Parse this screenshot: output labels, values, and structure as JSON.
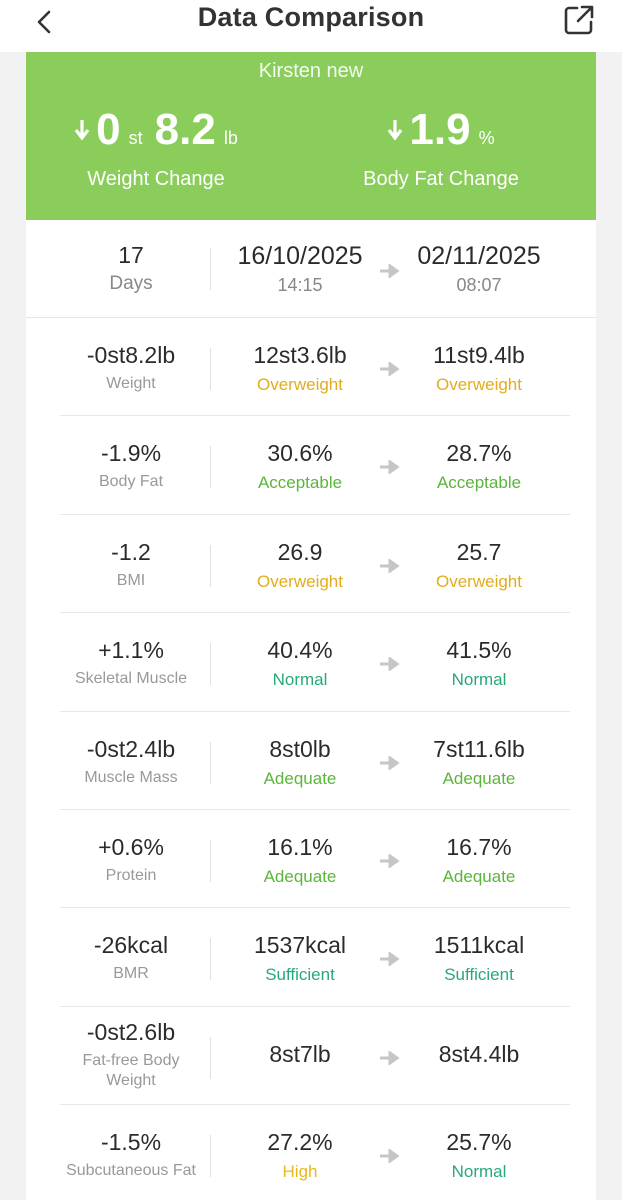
{
  "header": {
    "title": "Data Comparison",
    "back_icon": "chevron-left-icon",
    "share_icon": "share-external-icon"
  },
  "summary": {
    "user": "Kirsten new",
    "weight_change": {
      "arrow": "down",
      "st": "0",
      "st_unit": "st",
      "lb": "8.2",
      "lb_unit": "lb",
      "label": "Weight Change"
    },
    "body_fat_change": {
      "arrow": "down",
      "value": "1.9",
      "unit": "%",
      "label": "Body Fat Change"
    },
    "accent_color": "#8acd5a"
  },
  "period": {
    "days": "17",
    "days_label": "Days",
    "from_date": "16/10/2025",
    "from_time": "14:15",
    "to_date": "02/11/2025",
    "to_time": "08:07"
  },
  "status_colors": {
    "overweight": "#e3ac1e",
    "acceptable": "#5cb53b",
    "normal": "#28a977",
    "high": "#e8b61f"
  },
  "metrics": [
    {
      "change": "-0st8.2lb",
      "name": "Weight",
      "from": "12st3.6lb",
      "from_status": "Overweight",
      "to": "11st9.4lb",
      "to_status": "Overweight"
    },
    {
      "change": "-1.9%",
      "name": "Body Fat",
      "from": "30.6%",
      "from_status": "Acceptable",
      "to": "28.7%",
      "to_status": "Acceptable"
    },
    {
      "change": "-1.2",
      "name": "BMI",
      "from": "26.9",
      "from_status": "Overweight",
      "to": "25.7",
      "to_status": "Overweight"
    },
    {
      "change": "+1.1%",
      "name": "Skeletal Muscle",
      "from": "40.4%",
      "from_status": "Normal",
      "to": "41.5%",
      "to_status": "Normal"
    },
    {
      "change": "-0st2.4lb",
      "name": "Muscle Mass",
      "from": "8st0lb",
      "from_status": "Adequate",
      "to": "7st11.6lb",
      "to_status": "Adequate"
    },
    {
      "change": "+0.6%",
      "name": "Protein",
      "from": "16.1%",
      "from_status": "Adequate",
      "to": "16.7%",
      "to_status": "Adequate"
    },
    {
      "change": "-26kcal",
      "name": "BMR",
      "from": "1537kcal",
      "from_status": "Sufficient",
      "to": "1511kcal",
      "to_status": "Sufficient"
    },
    {
      "change": "-0st2.6lb",
      "name_line1": "Fat-free Body",
      "name_line2": "Weight",
      "from": "8st7lb",
      "to": "8st4.4lb"
    },
    {
      "change": "-1.5%",
      "name": "Subcutaneous Fat",
      "from": "27.2%",
      "from_status": "High",
      "to": "25.7%",
      "to_status": "Normal"
    }
  ]
}
